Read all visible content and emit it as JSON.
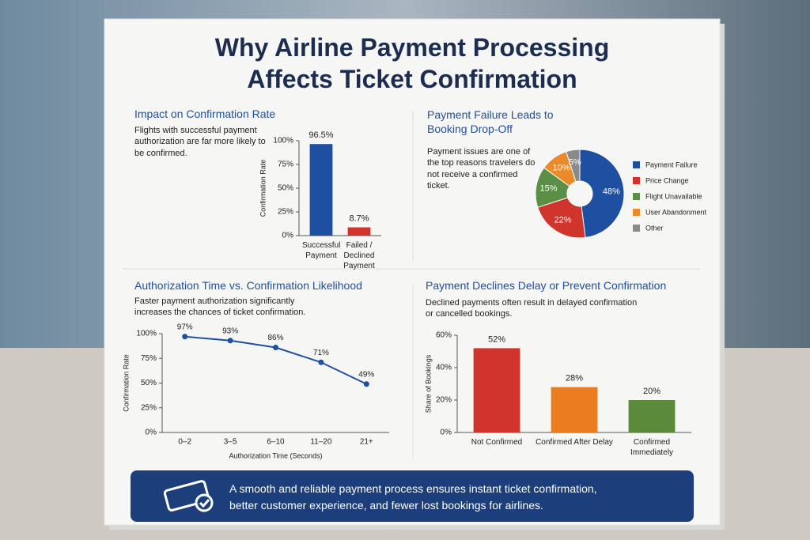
{
  "title_lines": [
    "Why Airline Payment Processing",
    "Affects Ticket Confirmation"
  ],
  "footer_lines": [
    "A smooth and reliable payment process ensures instant ticket confirmation,",
    "better customer experience, and fewer lost bookings for airlines."
  ],
  "chart_data": [
    {
      "type": "bar",
      "title": "Impact on Confirmation Rate",
      "subtitle": "Flights with successful payment authorization are far more likely to be confirmed.",
      "y_label": "Confirmation Rate",
      "categories": [
        "Successful Payment",
        "Failed / Declined Payment"
      ],
      "values": [
        96.5,
        8.7
      ],
      "value_labels": [
        "96.5%",
        "8.7%"
      ],
      "colors": [
        "#1f4fa0",
        "#d0342c"
      ],
      "ylim": [
        0,
        100
      ],
      "yticks": [
        {
          "value": 0,
          "label": "0%"
        },
        {
          "value": 25,
          "label": "25%"
        },
        {
          "value": 50,
          "label": "50%"
        },
        {
          "value": 75,
          "label": "75%"
        },
        {
          "value": 100,
          "label": "100%"
        }
      ]
    },
    {
      "type": "pie",
      "title": "Payment Failure Leads to Booking Drop-Off",
      "subtitle": "Payment issues are one of the top reasons travelers do not receive a confirmed ticket.",
      "categories": [
        "Payment Failure",
        "Price Change",
        "Flight Unavailable",
        "User Abandonment",
        "Other"
      ],
      "values": [
        48,
        22,
        15,
        10,
        5
      ],
      "value_labels": [
        "48%",
        "22%",
        "15%",
        "10%",
        "5%"
      ],
      "colors": [
        "#1f4fa0",
        "#d0342c",
        "#5b8f45",
        "#ea8a2a",
        "#8a8a8a"
      ]
    },
    {
      "type": "line",
      "title": "Authorization Time vs. Confirmation Likelihood",
      "subtitle": "Faster payment authorization significantly increases the chances of ticket confirmation.",
      "x_label": "Authorization Time (Seconds)",
      "y_label": "Confirmation Rate",
      "categories": [
        "0–2",
        "3–5",
        "6–10",
        "11–20",
        "21+"
      ],
      "values": [
        97,
        93,
        86,
        71,
        49
      ],
      "value_labels": [
        "97%",
        "93%",
        "86%",
        "71%",
        "49%"
      ],
      "color": "#1f4fa0",
      "ylim": [
        0,
        100
      ],
      "yticks": [
        {
          "value": 0,
          "label": "0%"
        },
        {
          "value": 25,
          "label": "25%"
        },
        {
          "value": 50,
          "label": "50%"
        },
        {
          "value": 75,
          "label": "75%"
        },
        {
          "value": 100,
          "label": "100%"
        }
      ]
    },
    {
      "type": "bar",
      "title": "Payment Declines Delay or Prevent Confirmation",
      "subtitle": "Declined payments often result in delayed confirmation or cancelled bookings.",
      "y_label": "Share of Bookings",
      "categories": [
        "Not Confirmed",
        "Confirmed After Delay",
        "Confirmed Immediately"
      ],
      "values": [
        52,
        28,
        20
      ],
      "value_labels": [
        "52%",
        "28%",
        "20%"
      ],
      "colors": [
        "#d0342c",
        "#ea7d1f",
        "#5b8a3a"
      ],
      "ylim": [
        0,
        60
      ],
      "yticks": [
        {
          "value": 0,
          "label": "0%"
        },
        {
          "value": 20,
          "label": "20%"
        },
        {
          "value": 40,
          "label": "40%"
        },
        {
          "value": 60,
          "label": "60%"
        }
      ]
    }
  ]
}
